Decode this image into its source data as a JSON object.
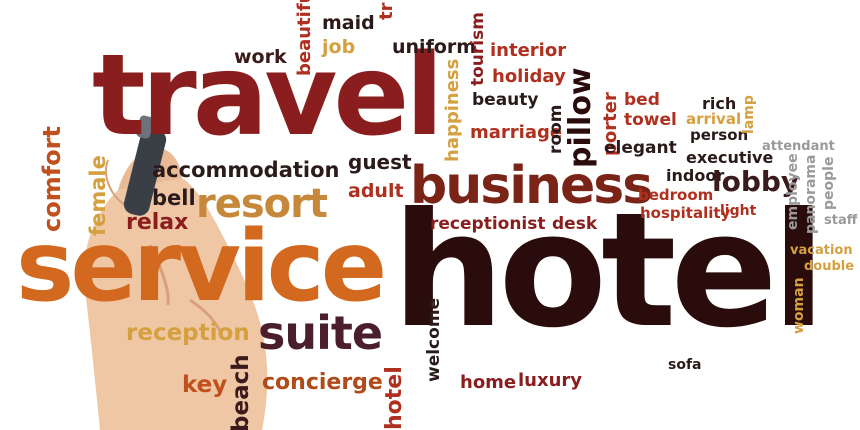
{
  "colors": {
    "dark_red": "#8a1e1e",
    "brown": "#5a2a1e",
    "orange": "#d2691e",
    "deep": "#2a0c0c",
    "tan": "#c6883a",
    "grey": "#8e8e8e",
    "skin": "#efc7a4"
  },
  "words": {
    "travel": "travel",
    "service": "service",
    "hotel": "hotel",
    "business": "business",
    "resort": "resort",
    "suite": "suite",
    "accommodation": "accommodation",
    "comfort": "comfort",
    "female": "female",
    "bell": "bell",
    "relax": "relax",
    "reception": "reception",
    "key": "key",
    "concierge": "concierge",
    "beach": "beach",
    "hotel_small": "hotel",
    "welcome": "welcome",
    "home": "home",
    "luxury": "luxury",
    "guest": "guest",
    "adult": "adult",
    "receptionist": "receptionist",
    "desk": "desk",
    "work": "work",
    "beautiful": "beautiful",
    "maid": "maid",
    "job": "job",
    "tr": "tr",
    "uniform": "uniform",
    "tourism": "tourism",
    "interior": "interior",
    "holiday": "holiday",
    "happiness": "happiness",
    "beauty": "beauty",
    "marriage": "marriage",
    "room": "room",
    "pillow": "pillow",
    "porter": "porter",
    "bed": "bed",
    "towel": "towel",
    "elegant": "elegant",
    "rich": "rich",
    "arrival": "arrival",
    "person": "person",
    "lamp": "lamp",
    "attendant": "attendant",
    "executive": "executive",
    "indoor": "indoor",
    "lobby": "lobby",
    "bedroom": "bedroom",
    "hospitality": "hospitality",
    "light": "light",
    "employee": "employee",
    "panorama": "panorama",
    "people": "people",
    "staff": "staff",
    "vacation": "vacation",
    "double": "double",
    "woman": "woman",
    "sofa": "sofa"
  }
}
